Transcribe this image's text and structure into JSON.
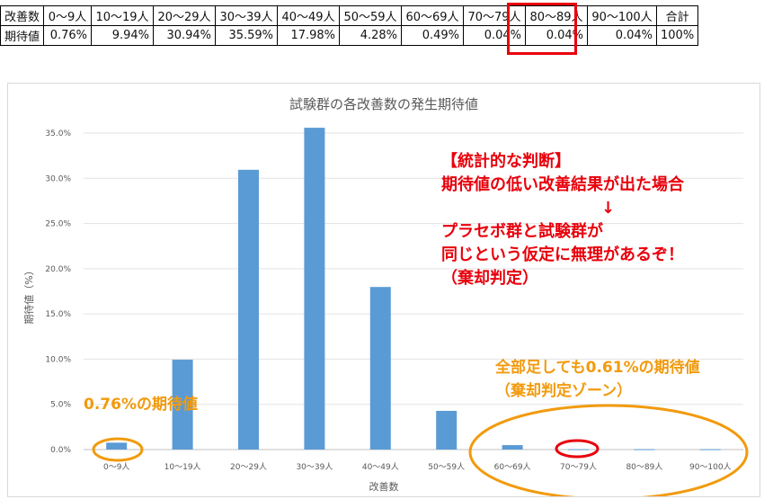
{
  "table": {
    "header_label": "改善数",
    "value_label": "期待値",
    "headers": [
      "0～9人",
      "10～19人",
      "20～29人",
      "30～39人",
      "40～49人",
      "50～59人",
      "60～69人",
      "70～79人",
      "80～89人",
      "90～100人",
      "合計"
    ],
    "values": [
      "0.76%",
      "9.94%",
      "30.94%",
      "35.59%",
      "17.98%",
      "4.28%",
      "0.49%",
      "0.04%",
      "0.04%",
      "0.04%",
      "100%"
    ]
  },
  "chart_data": {
    "type": "bar",
    "title": "試験群の各改善数の発生期待値",
    "xlabel": "改善数",
    "ylabel": "期待値（%）",
    "categories": [
      "0～9人",
      "10～19人",
      "20～29人",
      "30～39人",
      "40～49人",
      "50～59人",
      "60～69人",
      "70～79人",
      "80～89人",
      "90～100人"
    ],
    "values": [
      0.76,
      9.94,
      30.94,
      35.59,
      17.98,
      4.28,
      0.49,
      0.04,
      0.04,
      0.04
    ],
    "ylim": [
      0,
      35
    ],
    "yticks": [
      "0.0%",
      "5.0%",
      "10.0%",
      "15.0%",
      "20.0%",
      "25.0%",
      "30.0%",
      "35.0%"
    ],
    "grid": true,
    "bar_color": "#5b9bd5"
  },
  "annotations": {
    "judgement_lines": [
      "【統計的な判断】",
      "期待値の低い改善結果が出た場合",
      "↓",
      "プラセボ群と試験群が",
      "同じという仮定に無理があるぞ！",
      "（棄却判定）"
    ],
    "low_value_note": "0.76%の期待値",
    "tail_note_lines": [
      "全部足しても0.61%の期待値",
      "（棄却判定ゾーン）"
    ],
    "red_color": "#e8000b",
    "orange_color": "#f29a0d"
  }
}
